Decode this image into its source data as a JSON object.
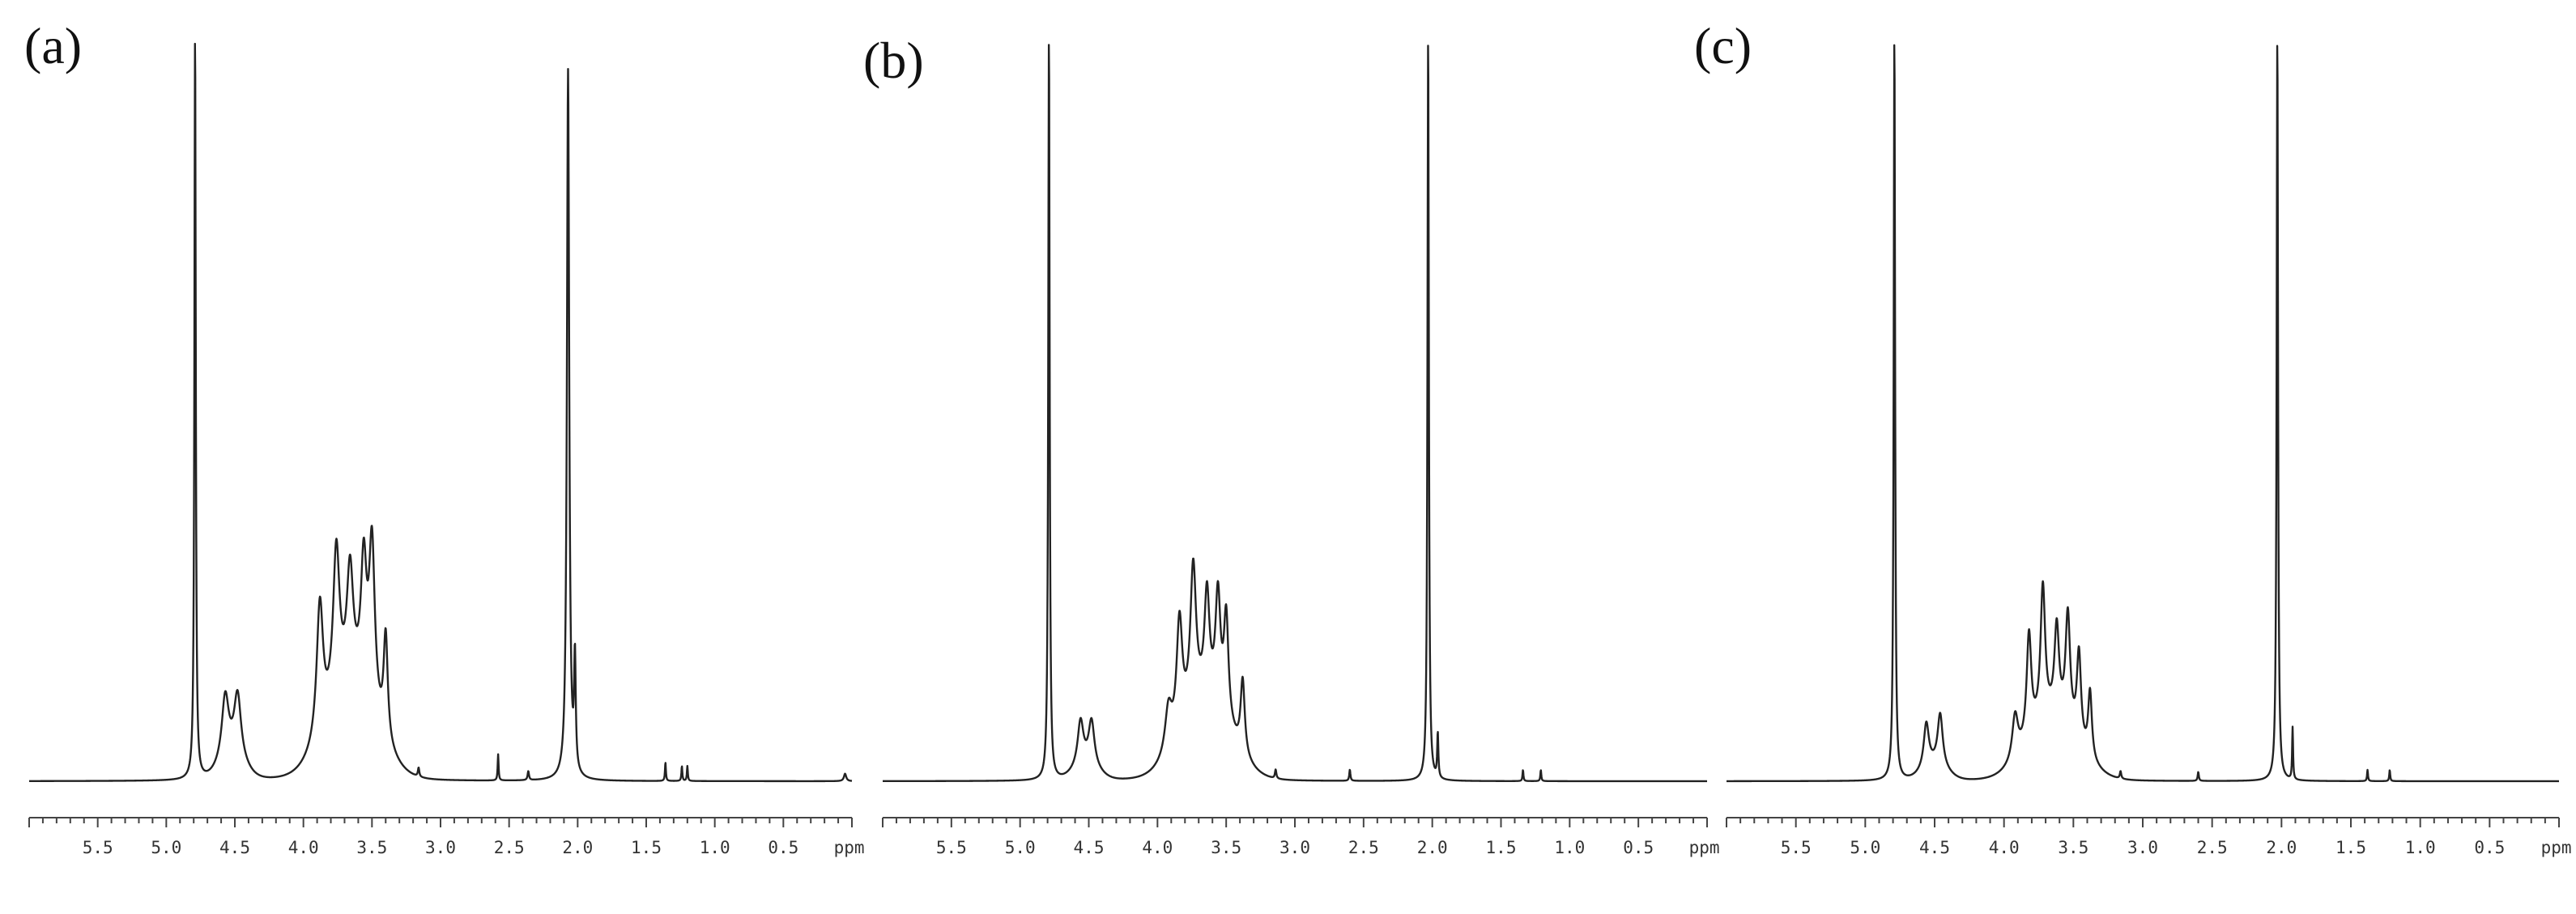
{
  "chart_data": [
    {
      "type": "line",
      "panel_label": "(a)",
      "x_tick_labels": [
        "5.5",
        "5.0",
        "4.5",
        "4.0",
        "3.5",
        "3.0",
        "2.5",
        "2.0",
        "1.5",
        "1.0",
        "0.5"
      ],
      "x_unit": "ppm",
      "x_reversed": true,
      "xlim": [
        6.0,
        0.0
      ],
      "ylim": [
        0,
        100
      ],
      "series": [
        {
          "peaks": [
            {
              "x": 4.79,
              "y": 100,
              "w": 0.006
            },
            {
              "x": 4.57,
              "y": 8.5,
              "w": 0.03
            },
            {
              "x": 4.48,
              "y": 8.5,
              "w": 0.03
            },
            {
              "x": 3.88,
              "y": 18,
              "w": 0.028
            },
            {
              "x": 3.76,
              "y": 20,
              "w": 0.028
            },
            {
              "x": 3.66,
              "y": 15,
              "w": 0.028
            },
            {
              "x": 3.56,
              "y": 17,
              "w": 0.025
            },
            {
              "x": 3.5,
              "y": 22,
              "w": 0.025
            },
            {
              "x": 3.4,
              "y": 14,
              "w": 0.018
            },
            {
              "x": 3.16,
              "y": 1.2,
              "w": 0.006
            },
            {
              "x": 2.58,
              "y": 3.5,
              "w": 0.004
            },
            {
              "x": 2.36,
              "y": 1.2,
              "w": 0.006
            },
            {
              "x": 2.07,
              "y": 95,
              "w": 0.01
            },
            {
              "x": 2.02,
              "y": 15,
              "w": 0.007
            },
            {
              "x": 1.36,
              "y": 2.5,
              "w": 0.004
            },
            {
              "x": 1.24,
              "y": 2,
              "w": 0.004
            },
            {
              "x": 1.2,
              "y": 2,
              "w": 0.004
            },
            {
              "x": 0.05,
              "y": 1,
              "w": 0.01
            }
          ],
          "bumps": [
            {
              "x": 3.65,
              "y": 12,
              "w": 0.25
            },
            {
              "x": 4.52,
              "y": 3,
              "w": 0.12
            }
          ]
        }
      ]
    },
    {
      "type": "line",
      "panel_label": "(b)",
      "x_tick_labels": [
        "5.5",
        "5.0",
        "4.5",
        "4.0",
        "3.5",
        "3.0",
        "2.5",
        "2.0",
        "1.5",
        "1.0",
        "0.5"
      ],
      "x_unit": "ppm",
      "x_reversed": true,
      "xlim": [
        6.0,
        0.0
      ],
      "ylim": [
        0,
        100
      ],
      "series": [
        {
          "peaks": [
            {
              "x": 4.79,
              "y": 100,
              "w": 0.006
            },
            {
              "x": 4.56,
              "y": 6,
              "w": 0.025
            },
            {
              "x": 4.48,
              "y": 6,
              "w": 0.025
            },
            {
              "x": 3.92,
              "y": 6,
              "w": 0.03
            },
            {
              "x": 3.84,
              "y": 15,
              "w": 0.025
            },
            {
              "x": 3.74,
              "y": 19,
              "w": 0.025
            },
            {
              "x": 3.64,
              "y": 14,
              "w": 0.022
            },
            {
              "x": 3.56,
              "y": 15,
              "w": 0.022
            },
            {
              "x": 3.5,
              "y": 14,
              "w": 0.02
            },
            {
              "x": 3.38,
              "y": 10,
              "w": 0.018
            },
            {
              "x": 3.14,
              "y": 1.2,
              "w": 0.006
            },
            {
              "x": 2.6,
              "y": 1.5,
              "w": 0.005
            },
            {
              "x": 2.03,
              "y": 100,
              "w": 0.006
            },
            {
              "x": 1.96,
              "y": 6,
              "w": 0.005
            },
            {
              "x": 1.34,
              "y": 1.5,
              "w": 0.004
            },
            {
              "x": 1.21,
              "y": 1.5,
              "w": 0.004
            }
          ],
          "bumps": [
            {
              "x": 3.65,
              "y": 10,
              "w": 0.25
            },
            {
              "x": 4.52,
              "y": 2,
              "w": 0.12
            }
          ]
        }
      ]
    },
    {
      "type": "line",
      "panel_label": "(c)",
      "x_tick_labels": [
        "5.5",
        "5.0",
        "4.5",
        "4.0",
        "3.5",
        "3.0",
        "2.5",
        "2.0",
        "1.5",
        "1.0",
        "0.5"
      ],
      "x_unit": "ppm",
      "x_reversed": true,
      "xlim": [
        6.0,
        0.0
      ],
      "ylim": [
        0,
        100
      ],
      "series": [
        {
          "peaks": [
            {
              "x": 4.79,
              "y": 100,
              "w": 0.006
            },
            {
              "x": 4.56,
              "y": 6,
              "w": 0.022
            },
            {
              "x": 4.46,
              "y": 7,
              "w": 0.022
            },
            {
              "x": 3.92,
              "y": 6,
              "w": 0.025
            },
            {
              "x": 3.82,
              "y": 14,
              "w": 0.02
            },
            {
              "x": 3.72,
              "y": 18,
              "w": 0.02
            },
            {
              "x": 3.62,
              "y": 12,
              "w": 0.02
            },
            {
              "x": 3.54,
              "y": 15,
              "w": 0.02
            },
            {
              "x": 3.46,
              "y": 12,
              "w": 0.018
            },
            {
              "x": 3.38,
              "y": 9,
              "w": 0.016
            },
            {
              "x": 3.16,
              "y": 1,
              "w": 0.006
            },
            {
              "x": 2.6,
              "y": 1.2,
              "w": 0.005
            },
            {
              "x": 2.03,
              "y": 100,
              "w": 0.006
            },
            {
              "x": 1.92,
              "y": 7,
              "w": 0.004
            },
            {
              "x": 1.38,
              "y": 1.5,
              "w": 0.004
            },
            {
              "x": 1.22,
              "y": 1.5,
              "w": 0.004
            }
          ],
          "bumps": [
            {
              "x": 3.65,
              "y": 8,
              "w": 0.25
            },
            {
              "x": 4.5,
              "y": 2,
              "w": 0.12
            }
          ]
        }
      ]
    }
  ]
}
